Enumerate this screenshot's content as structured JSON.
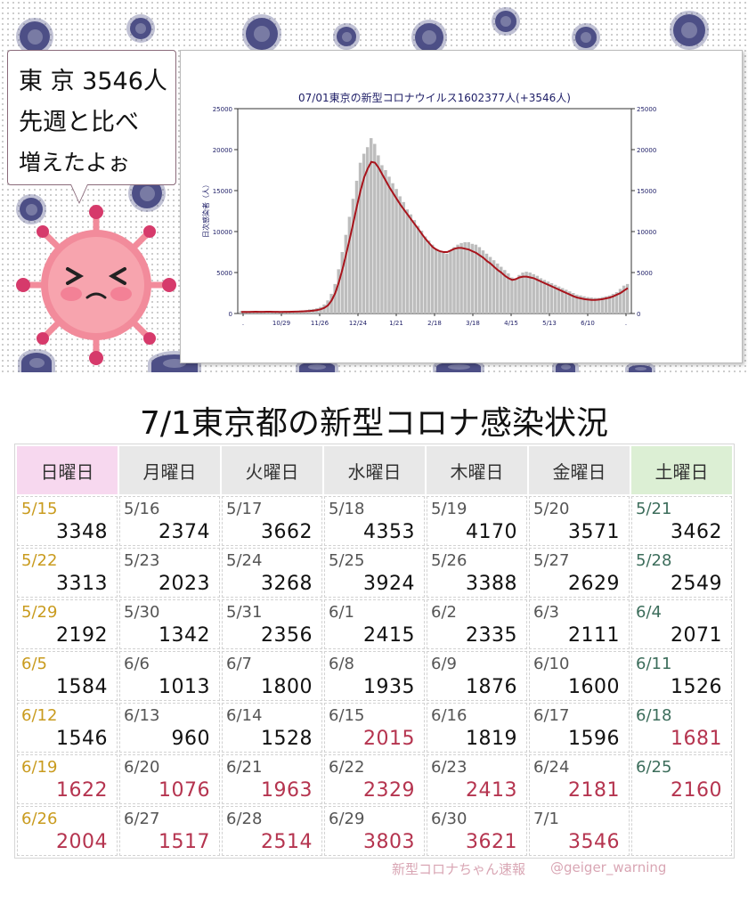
{
  "bubble": {
    "line1": "東 京 3546人",
    "line2": "先週と比べ",
    "line3": "増えたよぉ"
  },
  "colors": {
    "sunday_header": "#f7d8ef",
    "saturday_header": "#dcefd4",
    "increase_red": "#b5344f",
    "sunday_date": "#c99b1e",
    "saturday_date": "#3c6d5b",
    "trend_line": "#a8141c",
    "bar_gray": "#bdbdbd",
    "virus_navy": "#4d4f86",
    "mascot_pink": "#f28b9b"
  },
  "chart_data": {
    "type": "bar",
    "title": "07/01東京の新型コロナウイルス1602377人(+3546人)",
    "ylabel": "日次感染者（人）",
    "ylim": [
      0,
      25000
    ],
    "yticks": [
      0,
      5000,
      10000,
      15000,
      20000,
      25000
    ],
    "xticks": [
      ".",
      "10/29",
      "11/26",
      "12/24",
      "1/21",
      "2/18",
      "3/18",
      "4/15",
      "5/13",
      "6/10",
      "."
    ],
    "grid": false,
    "legend": "none",
    "series": [
      {
        "kind": "bars",
        "values": [
          300,
          300,
          250,
          280,
          300,
          270,
          260,
          300,
          290,
          280,
          280,
          270,
          260,
          280,
          300,
          320,
          350,
          380,
          420,
          500,
          550,
          650,
          800,
          1100,
          1600,
          2400,
          3600,
          5400,
          7500,
          9600,
          11800,
          14000,
          16200,
          18400,
          19500,
          20300,
          21400,
          20700,
          19300,
          18100,
          17500,
          16700,
          15900,
          15200,
          14300,
          13600,
          12700,
          12100,
          11400,
          10700,
          10100,
          9400,
          8900,
          8400,
          7900,
          7600,
          7400,
          7300,
          7700,
          8100,
          8400,
          8600,
          8700,
          8700,
          8500,
          8400,
          8100,
          7700,
          7300,
          6900,
          6500,
          6100,
          5700,
          5300,
          4900,
          4400,
          4200,
          4700,
          5000,
          5100,
          5000,
          4800,
          4600,
          4300,
          4100,
          3900,
          3700,
          3500,
          3300,
          3100,
          2900,
          2700,
          2500,
          2300,
          2200,
          2100,
          2000,
          1950,
          1900,
          1900,
          2000,
          2100,
          2200,
          2400,
          2600,
          3000,
          3400,
          3600
        ]
      },
      {
        "kind": "line",
        "values": [
          200,
          200,
          200,
          210,
          220,
          210,
          210,
          220,
          220,
          210,
          210,
          200,
          210,
          210,
          220,
          230,
          240,
          260,
          280,
          320,
          360,
          420,
          520,
          700,
          1000,
          1600,
          2500,
          3800,
          5400,
          7200,
          9100,
          11100,
          13100,
          15000,
          16600,
          17700,
          18500,
          18400,
          17800,
          17000,
          16200,
          15400,
          14700,
          14000,
          13300,
          12700,
          12100,
          11500,
          10900,
          10300,
          9700,
          9100,
          8600,
          8100,
          7800,
          7600,
          7500,
          7500,
          7700,
          7900,
          8000,
          8000,
          7900,
          7800,
          7600,
          7400,
          7100,
          6800,
          6400,
          6100,
          5700,
          5300,
          5000,
          4600,
          4300,
          4100,
          4200,
          4400,
          4500,
          4500,
          4400,
          4300,
          4100,
          3900,
          3700,
          3500,
          3300,
          3100,
          2900,
          2700,
          2500,
          2300,
          2100,
          1950,
          1850,
          1750,
          1700,
          1650,
          1650,
          1700,
          1750,
          1850,
          1950,
          2100,
          2300,
          2500,
          2800,
          3100
        ]
      }
    ]
  },
  "main": {
    "title": "7/1東京都の新型コロナ感染状況"
  },
  "calendar": {
    "headers": [
      "日曜日",
      "月曜日",
      "火曜日",
      "水曜日",
      "木曜日",
      "金曜日",
      "土曜日"
    ],
    "rows": [
      [
        {
          "date": "5/15",
          "value": "3348",
          "up": false
        },
        {
          "date": "5/16",
          "value": "2374",
          "up": false
        },
        {
          "date": "5/17",
          "value": "3662",
          "up": false
        },
        {
          "date": "5/18",
          "value": "4353",
          "up": false
        },
        {
          "date": "5/19",
          "value": "4170",
          "up": false
        },
        {
          "date": "5/20",
          "value": "3571",
          "up": false
        },
        {
          "date": "5/21",
          "value": "3462",
          "up": false
        }
      ],
      [
        {
          "date": "5/22",
          "value": "3313",
          "up": false
        },
        {
          "date": "5/23",
          "value": "2023",
          "up": false
        },
        {
          "date": "5/24",
          "value": "3268",
          "up": false
        },
        {
          "date": "5/25",
          "value": "3924",
          "up": false
        },
        {
          "date": "5/26",
          "value": "3388",
          "up": false
        },
        {
          "date": "5/27",
          "value": "2629",
          "up": false
        },
        {
          "date": "5/28",
          "value": "2549",
          "up": false
        }
      ],
      [
        {
          "date": "5/29",
          "value": "2192",
          "up": false
        },
        {
          "date": "5/30",
          "value": "1342",
          "up": false
        },
        {
          "date": "5/31",
          "value": "2356",
          "up": false
        },
        {
          "date": "6/1",
          "value": "2415",
          "up": false
        },
        {
          "date": "6/2",
          "value": "2335",
          "up": false
        },
        {
          "date": "6/3",
          "value": "2111",
          "up": false
        },
        {
          "date": "6/4",
          "value": "2071",
          "up": false
        }
      ],
      [
        {
          "date": "6/5",
          "value": "1584",
          "up": false
        },
        {
          "date": "6/6",
          "value": "1013",
          "up": false
        },
        {
          "date": "6/7",
          "value": "1800",
          "up": false
        },
        {
          "date": "6/8",
          "value": "1935",
          "up": false
        },
        {
          "date": "6/9",
          "value": "1876",
          "up": false
        },
        {
          "date": "6/10",
          "value": "1600",
          "up": false
        },
        {
          "date": "6/11",
          "value": "1526",
          "up": false
        }
      ],
      [
        {
          "date": "6/12",
          "value": "1546",
          "up": false
        },
        {
          "date": "6/13",
          "value": "960",
          "up": false
        },
        {
          "date": "6/14",
          "value": "1528",
          "up": false
        },
        {
          "date": "6/15",
          "value": "2015",
          "up": true
        },
        {
          "date": "6/16",
          "value": "1819",
          "up": false
        },
        {
          "date": "6/17",
          "value": "1596",
          "up": false
        },
        {
          "date": "6/18",
          "value": "1681",
          "up": true
        }
      ],
      [
        {
          "date": "6/19",
          "value": "1622",
          "up": true
        },
        {
          "date": "6/20",
          "value": "1076",
          "up": true
        },
        {
          "date": "6/21",
          "value": "1963",
          "up": true
        },
        {
          "date": "6/22",
          "value": "2329",
          "up": true
        },
        {
          "date": "6/23",
          "value": "2413",
          "up": true
        },
        {
          "date": "6/24",
          "value": "2181",
          "up": true
        },
        {
          "date": "6/25",
          "value": "2160",
          "up": true
        }
      ],
      [
        {
          "date": "6/26",
          "value": "2004",
          "up": true
        },
        {
          "date": "6/27",
          "value": "1517",
          "up": true
        },
        {
          "date": "6/28",
          "value": "2514",
          "up": true
        },
        {
          "date": "6/29",
          "value": "3803",
          "up": true
        },
        {
          "date": "6/30",
          "value": "3621",
          "up": true
        },
        {
          "date": "7/1",
          "value": "3546",
          "up": true
        },
        {
          "date": "",
          "value": "",
          "up": false
        }
      ]
    ]
  },
  "credits": {
    "left": "新型コロナちゃん速報",
    "right": "@geiger_warning"
  }
}
